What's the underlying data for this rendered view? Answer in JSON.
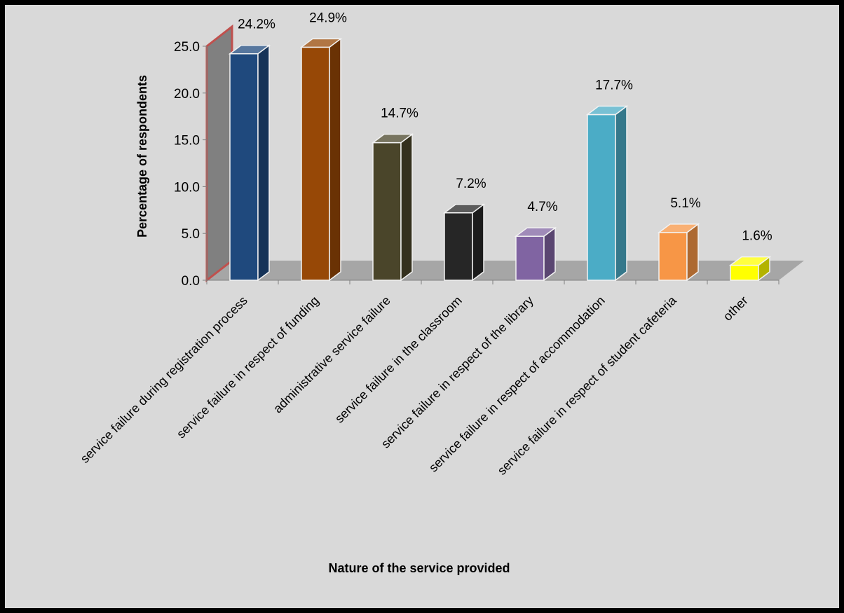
{
  "chart_data": {
    "type": "bar",
    "style": "3d-column",
    "title": "",
    "xlabel": "Nature of the service provided",
    "ylabel": "Percentage of respondents",
    "ylim": [
      0,
      25
    ],
    "yticks": [
      "0.0",
      "5.0",
      "10.0",
      "15.0",
      "20.0",
      "25.0"
    ],
    "grid": false,
    "legend": "none",
    "categories": [
      "service failure during registration process",
      "service failure in respect of funding",
      "administrative service failure",
      "service failure in the classroom",
      "service failure in  respect of the library",
      "service failure in respect of accommodation",
      "service failure in respect of student cafeteria",
      "other"
    ],
    "values": [
      24.2,
      24.9,
      14.7,
      7.2,
      4.7,
      17.7,
      5.1,
      1.6
    ],
    "data_labels": [
      "24.2%",
      "24.9%",
      "14.7%",
      "7.2%",
      "4.7%",
      "17.7%",
      "5.1%",
      "1.6%"
    ],
    "bar_colors": [
      "#1f497d",
      "#974806",
      "#4a452a",
      "#262626",
      "#8064a2",
      "#4bacc6",
      "#f79646",
      "#ffff00"
    ],
    "background_color": "#d9d9d9",
    "back_wall_color": "#808080",
    "back_wall_border_color": "#c0504d"
  }
}
